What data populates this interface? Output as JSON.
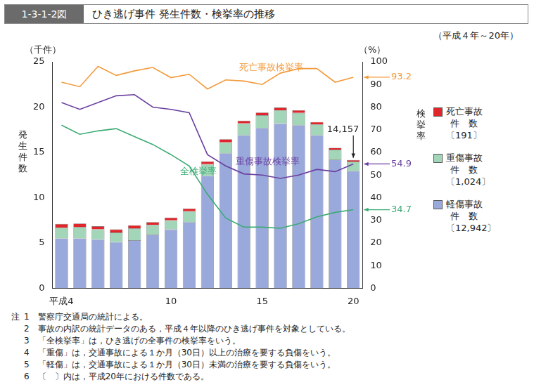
{
  "chart_data": {
    "type": "bar",
    "figure_number": "1-3-1-2図",
    "title": "ひき逃げ事件 発生件数・検挙率の推移",
    "subtitle": "（平成４年～20年）",
    "y_unit": "（千件）",
    "y_label": "発生件数",
    "y2_unit": "（%）",
    "y2_label": "検挙率",
    "categories": [
      "平成4",
      null,
      null,
      null,
      null,
      null,
      "10",
      null,
      null,
      null,
      null,
      "15",
      null,
      null,
      null,
      null,
      "20"
    ],
    "stacked": true,
    "grid": false,
    "ylim": [
      0,
      25
    ],
    "yticks": [
      0,
      5,
      10,
      15,
      20,
      25
    ],
    "y2lim": [
      0,
      100
    ],
    "y2ticks": [
      0,
      10,
      20,
      30,
      40,
      50,
      60,
      70,
      80,
      90,
      100
    ],
    "series": [
      {
        "name": "軽傷事故件数〔12,942〕",
        "type": "bar",
        "color": "#9aa9dc",
        "values": [
          5.5,
          5.5,
          5.4,
          5.1,
          5.3,
          5.9,
          6.5,
          7.3,
          12.4,
          14.9,
          16.9,
          17.7,
          18.2,
          18.0,
          16.9,
          14.2,
          12.942
        ]
      },
      {
        "name": "重傷事故件数〔1,024〕",
        "type": "bar",
        "color": "#a3d6b8",
        "values": [
          1.2,
          1.25,
          1.1,
          1.05,
          1.3,
          1.1,
          1.0,
          1.2,
          1.3,
          1.2,
          1.3,
          1.4,
          1.45,
          1.35,
          1.2,
          1.1,
          1.024
        ]
      },
      {
        "name": "死亡事故件数〔191〕",
        "type": "bar",
        "color": "#e0262a",
        "values": [
          0.4,
          0.4,
          0.35,
          0.35,
          0.35,
          0.3,
          0.3,
          0.3,
          0.3,
          0.35,
          0.3,
          0.3,
          0.3,
          0.3,
          0.25,
          0.2,
          0.191
        ]
      },
      {
        "name": "死亡事故検挙率",
        "type": "line",
        "axis": "y2",
        "color": "#f39a3c",
        "values": [
          91,
          89,
          98,
          94,
          96,
          97.5,
          93,
          94.5,
          88,
          92,
          91.5,
          90,
          95,
          97,
          97,
          91,
          93.2
        ],
        "value_labels": [
          null,
          null,
          null,
          null,
          null,
          null,
          null,
          null,
          null,
          null,
          null,
          null,
          null,
          null,
          null,
          null,
          "93.2"
        ]
      },
      {
        "name": "重傷事故検挙率",
        "type": "line",
        "axis": "y2",
        "color": "#6a3fa0",
        "values": [
          82,
          79,
          82,
          85,
          85.5,
          80,
          79,
          77.5,
          59,
          54,
          50.5,
          50,
          48.5,
          50,
          52.5,
          51.5,
          54.9
        ],
        "value_labels": [
          null,
          null,
          null,
          null,
          null,
          null,
          null,
          null,
          null,
          null,
          null,
          null,
          null,
          null,
          null,
          null,
          "54.9"
        ]
      },
      {
        "name": "全検挙率",
        "type": "line",
        "axis": "y2",
        "color": "#3bab73",
        "values": [
          72,
          68,
          69.5,
          70.5,
          67,
          63.5,
          59,
          54,
          41.5,
          31,
          27,
          27,
          26.5,
          28.5,
          31.5,
          33.5,
          34.7
        ],
        "value_labels": [
          null,
          null,
          null,
          null,
          null,
          null,
          null,
          null,
          null,
          null,
          null,
          null,
          null,
          null,
          null,
          null,
          "34.7"
        ]
      }
    ],
    "annotations": [
      {
        "text": "14,157",
        "x": "20",
        "value": 14.157
      }
    ],
    "notes_label": "注",
    "notes": [
      "1　警察庁交通局の統計による。",
      "2　事故の内訳の統計データのある，平成４年以降のひき逃げ事件を対象としている。",
      "3　「全検挙率」は，ひき逃げの全事件の検挙率をいう。",
      "4　「重傷」は，交通事故による１か月（30日）以上の治療を要する負傷をいう。",
      "5　「軽傷」は，交通事故による１か月（30日）未満の治療を要する負傷をいう。",
      "6　〔　〕内は，平成20年における件数である。"
    ]
  }
}
